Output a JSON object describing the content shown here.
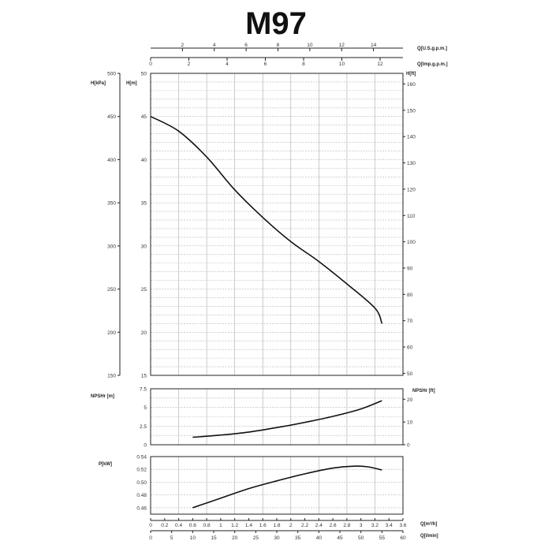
{
  "title": "M97",
  "chart_data": [
    {
      "id": "head",
      "type": "line",
      "ylabel_left_outer": "H[kPa]",
      "ylabel_left_inner": "H[m]",
      "ylabel_right": "H[ft]",
      "y_m_ticks": [
        15,
        20,
        25,
        30,
        35,
        40,
        45,
        50
      ],
      "y_kpa_ticks": [
        150,
        200,
        250,
        300,
        350,
        400,
        450,
        500
      ],
      "y_ft_ticks": [
        50,
        60,
        70,
        80,
        90,
        100,
        110,
        120,
        130,
        140,
        150,
        160
      ],
      "ylim_m": [
        15,
        50
      ],
      "x_usgpm_label": "Q[U.S.g.p.m.]",
      "x_usgpm_ticks": [
        2,
        4,
        6,
        8,
        10,
        12,
        14
      ],
      "x_impgpm_label": "Q[Imp.g.p.m.]",
      "x_impgpm_ticks": [
        0,
        2,
        4,
        6,
        8,
        10,
        12
      ],
      "series": [
        {
          "x": [
            0,
            0.4,
            0.8,
            1.2,
            1.6,
            2.0,
            2.4,
            2.8,
            3.2,
            3.3
          ],
          "y": [
            45,
            43.3,
            40.3,
            36.5,
            33.3,
            30.5,
            28.2,
            25.6,
            22.8,
            21
          ]
        }
      ]
    },
    {
      "id": "npsh",
      "type": "line",
      "ylabel_left": "NPSHr [m]",
      "ylabel_right": "NPSHr [ft]",
      "y_m_ticks": [
        "0",
        "2.5",
        "5",
        "7.5"
      ],
      "y_ft_ticks": [
        0,
        10,
        20
      ],
      "ylim_m": [
        0,
        7.5
      ],
      "series": [
        {
          "x": [
            0.6,
            1.0,
            1.4,
            1.8,
            2.2,
            2.6,
            3.0,
            3.3
          ],
          "y": [
            1.0,
            1.3,
            1.7,
            2.3,
            3.0,
            3.8,
            4.8,
            5.9
          ]
        }
      ]
    },
    {
      "id": "power",
      "type": "line",
      "ylabel_left": "P[kW]",
      "y_ticks": [
        "0.46",
        "0.48",
        "0.50",
        "0.52",
        "0.54"
      ],
      "ylim": [
        0.45,
        0.54
      ],
      "series": [
        {
          "x": [
            0.6,
            1.0,
            1.4,
            1.8,
            2.2,
            2.6,
            2.9,
            3.1,
            3.3
          ],
          "y": [
            0.46,
            0.475,
            0.49,
            0.502,
            0.513,
            0.522,
            0.525,
            0.524,
            0.519
          ]
        }
      ]
    }
  ],
  "bottom_axes": {
    "m3h_label": "Q[m³/h]",
    "m3h_ticks": [
      "0",
      "0.2",
      "0.4",
      "0.6",
      "0.8",
      "1",
      "1.2",
      "1.4",
      "1.6",
      "1.8",
      "2",
      "2.2",
      "2.4",
      "2.6",
      "2.8",
      "3",
      "3.2",
      "3.4",
      "3.6"
    ],
    "lmin_label": "Q[l/min]",
    "lmin_ticks": [
      0,
      5,
      10,
      15,
      20,
      25,
      30,
      35,
      40,
      45,
      50,
      55,
      60
    ]
  }
}
